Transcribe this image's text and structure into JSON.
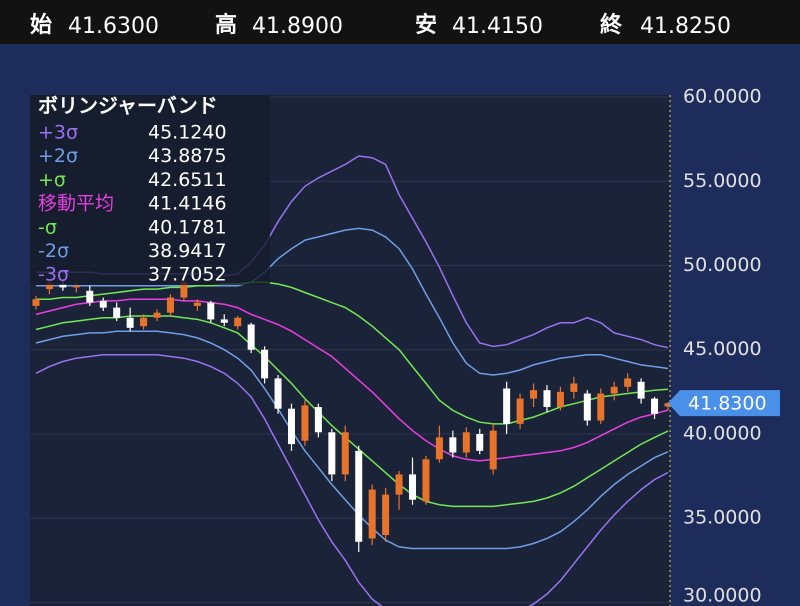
{
  "header": [
    {
      "label": "始",
      "value": "41.6300"
    },
    {
      "label": "高",
      "value": "41.8900"
    },
    {
      "label": "安",
      "value": "41.4150"
    },
    {
      "label": "終",
      "value": "41.8250"
    }
  ],
  "chart_data": {
    "type": "candlestick",
    "legend_title": "ボリンジャーバンド",
    "up_color": "#e8742c",
    "down_color": "#ffffff",
    "ylim": [
      29.79,
      60.12
    ],
    "yticks": [
      {
        "value": 30,
        "label": "30.0000"
      },
      {
        "value": 35,
        "label": "35.0000"
      },
      {
        "value": 40,
        "label": "40.0000"
      },
      {
        "value": 45,
        "label": "45.0000"
      },
      {
        "value": 50,
        "label": "50.0000"
      },
      {
        "value": 55,
        "label": "55.0000"
      },
      {
        "value": 60,
        "label": "60.0000"
      }
    ],
    "grid": true,
    "last_price": {
      "value": 41.83,
      "label": "41.8300"
    },
    "open": [
      47.6,
      48.6,
      48.9,
      48.7,
      48.5,
      47.9,
      47.5,
      46.9,
      46.4,
      46.9,
      47.2,
      48.1,
      47.6,
      47.8,
      46.8,
      46.4,
      46.5,
      45.0,
      43.3,
      41.5,
      39.6,
      41.6,
      40.1,
      37.6,
      39.0,
      33.8,
      34.0,
      36.4,
      37.6,
      36.0,
      38.5,
      39.8,
      38.9,
      40.0,
      37.9,
      42.7,
      40.6,
      42.1,
      42.6,
      41.6,
      42.5,
      42.4,
      40.8,
      42.4,
      42.8,
      43.1,
      42.1,
      41.63
    ],
    "high": [
      48.2,
      49.1,
      49.2,
      49.0,
      48.8,
      48.1,
      47.8,
      47.5,
      47.1,
      47.4,
      48.3,
      49.3,
      48.0,
      47.9,
      47.1,
      47.0,
      46.6,
      45.2,
      43.5,
      41.8,
      42.0,
      41.8,
      40.3,
      40.5,
      39.3,
      37.0,
      36.8,
      37.8,
      38.6,
      38.7,
      40.5,
      40.2,
      40.4,
      40.3,
      40.6,
      43.1,
      42.4,
      43.0,
      42.9,
      42.8,
      43.4,
      42.6,
      42.7,
      43.1,
      43.6,
      43.3,
      42.2,
      41.89
    ],
    "low": [
      47.4,
      48.3,
      48.5,
      48.4,
      47.6,
      47.3,
      46.7,
      46.1,
      46.2,
      46.7,
      47.0,
      47.9,
      47.3,
      46.6,
      46.4,
      46.2,
      44.8,
      43.0,
      41.2,
      39.0,
      39.3,
      39.8,
      37.2,
      37.2,
      33.0,
      33.4,
      33.6,
      35.5,
      35.8,
      35.8,
      38.3,
      38.6,
      38.6,
      38.8,
      37.6,
      40.0,
      40.3,
      41.6,
      41.3,
      41.4,
      42.1,
      40.5,
      40.6,
      42.0,
      42.5,
      41.8,
      40.9,
      41.415
    ],
    "close": [
      48.0,
      48.9,
      48.7,
      48.8,
      47.8,
      47.5,
      46.9,
      46.3,
      46.9,
      47.2,
      48.1,
      49.0,
      47.8,
      46.8,
      46.6,
      46.9,
      45.0,
      43.3,
      41.5,
      39.4,
      41.7,
      40.1,
      37.6,
      40.1,
      33.6,
      36.7,
      36.4,
      37.6,
      36.1,
      38.5,
      39.8,
      38.9,
      40.1,
      39.0,
      40.2,
      40.6,
      42.1,
      42.6,
      41.6,
      42.5,
      43.0,
      40.8,
      42.4,
      42.8,
      43.3,
      42.1,
      41.2,
      41.825
    ],
    "bands": [
      {
        "name": "+3σ",
        "color": "#9a72f2",
        "legend_value": "45.1240",
        "values": [
          49.6,
          49.6,
          49.6,
          49.6,
          49.6,
          49.5,
          49.5,
          49.5,
          49.5,
          49.5,
          49.5,
          49.5,
          49.5,
          49.5,
          49.4,
          49.5,
          50.2,
          51.2,
          52.6,
          53.8,
          54.7,
          55.2,
          55.6,
          56.0,
          56.5,
          56.4,
          56.0,
          54.2,
          52.8,
          51.4,
          49.9,
          48.2,
          46.6,
          45.4,
          45.2,
          45.3,
          45.6,
          45.9,
          46.3,
          46.6,
          46.6,
          46.9,
          46.6,
          46.0,
          45.8,
          45.6,
          45.3,
          45.124
        ]
      },
      {
        "name": "+2σ",
        "color": "#6f9ee8",
        "legend_value": "43.8875",
        "values": [
          48.8,
          48.8,
          48.8,
          48.8,
          48.8,
          48.8,
          48.8,
          48.8,
          48.8,
          48.8,
          48.8,
          48.8,
          48.8,
          48.8,
          48.8,
          48.8,
          49.0,
          49.6,
          50.4,
          51.0,
          51.5,
          51.7,
          51.9,
          52.1,
          52.2,
          52.1,
          51.7,
          51.0,
          49.8,
          48.3,
          46.9,
          45.4,
          44.2,
          43.6,
          43.5,
          43.6,
          43.8,
          44.1,
          44.3,
          44.5,
          44.6,
          44.7,
          44.7,
          44.5,
          44.3,
          44.1,
          44.0,
          43.8875
        ]
      },
      {
        "name": "+σ",
        "color": "#72e852",
        "legend_value": "42.6511",
        "values": [
          48.0,
          48.0,
          48.1,
          48.1,
          48.2,
          48.3,
          48.4,
          48.5,
          48.6,
          48.6,
          48.7,
          48.7,
          48.8,
          48.8,
          48.9,
          48.9,
          49.0,
          49.0,
          48.9,
          48.7,
          48.4,
          48.1,
          47.8,
          47.5,
          47.0,
          46.4,
          45.7,
          45.0,
          44.0,
          43.0,
          42.0,
          41.4,
          41.0,
          40.7,
          40.6,
          40.6,
          40.8,
          41.0,
          41.3,
          41.6,
          41.8,
          42.0,
          42.2,
          42.3,
          42.4,
          42.5,
          42.6,
          42.6511
        ]
      },
      {
        "name": "移動平均",
        "color": "#e83fe0",
        "legend_value": "41.4146",
        "values": [
          47.1,
          47.3,
          47.5,
          47.7,
          47.8,
          47.9,
          47.9,
          48.0,
          48.0,
          48.0,
          48.0,
          47.9,
          47.9,
          47.8,
          47.7,
          47.5,
          47.1,
          46.8,
          46.5,
          46.1,
          45.6,
          45.1,
          44.6,
          43.9,
          43.2,
          42.5,
          41.7,
          40.9,
          40.2,
          39.6,
          39.1,
          38.7,
          38.5,
          38.4,
          38.5,
          38.6,
          38.7,
          38.8,
          38.9,
          39.0,
          39.2,
          39.5,
          39.9,
          40.3,
          40.7,
          41.0,
          41.2,
          41.4146
        ]
      },
      {
        "name": "-σ",
        "color": "#72e852",
        "legend_value": "40.1781",
        "values": [
          46.2,
          46.4,
          46.6,
          46.7,
          46.8,
          46.9,
          46.9,
          47.0,
          47.0,
          47.0,
          47.0,
          46.9,
          46.8,
          46.6,
          46.3,
          46.0,
          45.3,
          44.6,
          43.8,
          43.0,
          42.1,
          41.3,
          40.5,
          39.8,
          39.1,
          38.4,
          37.7,
          37.0,
          36.4,
          36.0,
          35.8,
          35.7,
          35.7,
          35.7,
          35.7,
          35.8,
          35.9,
          36.0,
          36.2,
          36.5,
          36.9,
          37.4,
          37.9,
          38.4,
          38.9,
          39.4,
          39.8,
          40.1781
        ]
      },
      {
        "name": "-2σ",
        "color": "#6f9ee8",
        "legend_value": "38.9417",
        "values": [
          45.4,
          45.6,
          45.8,
          45.9,
          46.0,
          46.0,
          46.1,
          46.1,
          46.1,
          46.1,
          46.0,
          45.9,
          45.7,
          45.4,
          45.0,
          44.5,
          43.8,
          42.7,
          41.5,
          40.2,
          39.0,
          38.0,
          37.0,
          36.1,
          35.2,
          34.4,
          33.7,
          33.3,
          33.2,
          33.2,
          33.2,
          33.2,
          33.2,
          33.2,
          33.2,
          33.2,
          33.3,
          33.5,
          33.8,
          34.2,
          34.8,
          35.5,
          36.3,
          37.0,
          37.6,
          38.1,
          38.6,
          38.9417
        ]
      },
      {
        "name": "-3σ",
        "color": "#9a72f2",
        "legend_value": "37.7052",
        "values": [
          43.6,
          44.0,
          44.3,
          44.5,
          44.6,
          44.7,
          44.7,
          44.7,
          44.7,
          44.7,
          44.6,
          44.5,
          44.3,
          44.0,
          43.6,
          43.0,
          42.2,
          40.9,
          39.4,
          37.9,
          36.4,
          34.9,
          33.6,
          32.5,
          31.2,
          30.2,
          29.6,
          29.4,
          29.3,
          29.3,
          29.2,
          29.2,
          29.2,
          29.2,
          29.2,
          29.3,
          29.5,
          29.9,
          30.5,
          31.3,
          32.3,
          33.3,
          34.3,
          35.2,
          36.0,
          36.7,
          37.3,
          37.7052
        ]
      }
    ]
  }
}
